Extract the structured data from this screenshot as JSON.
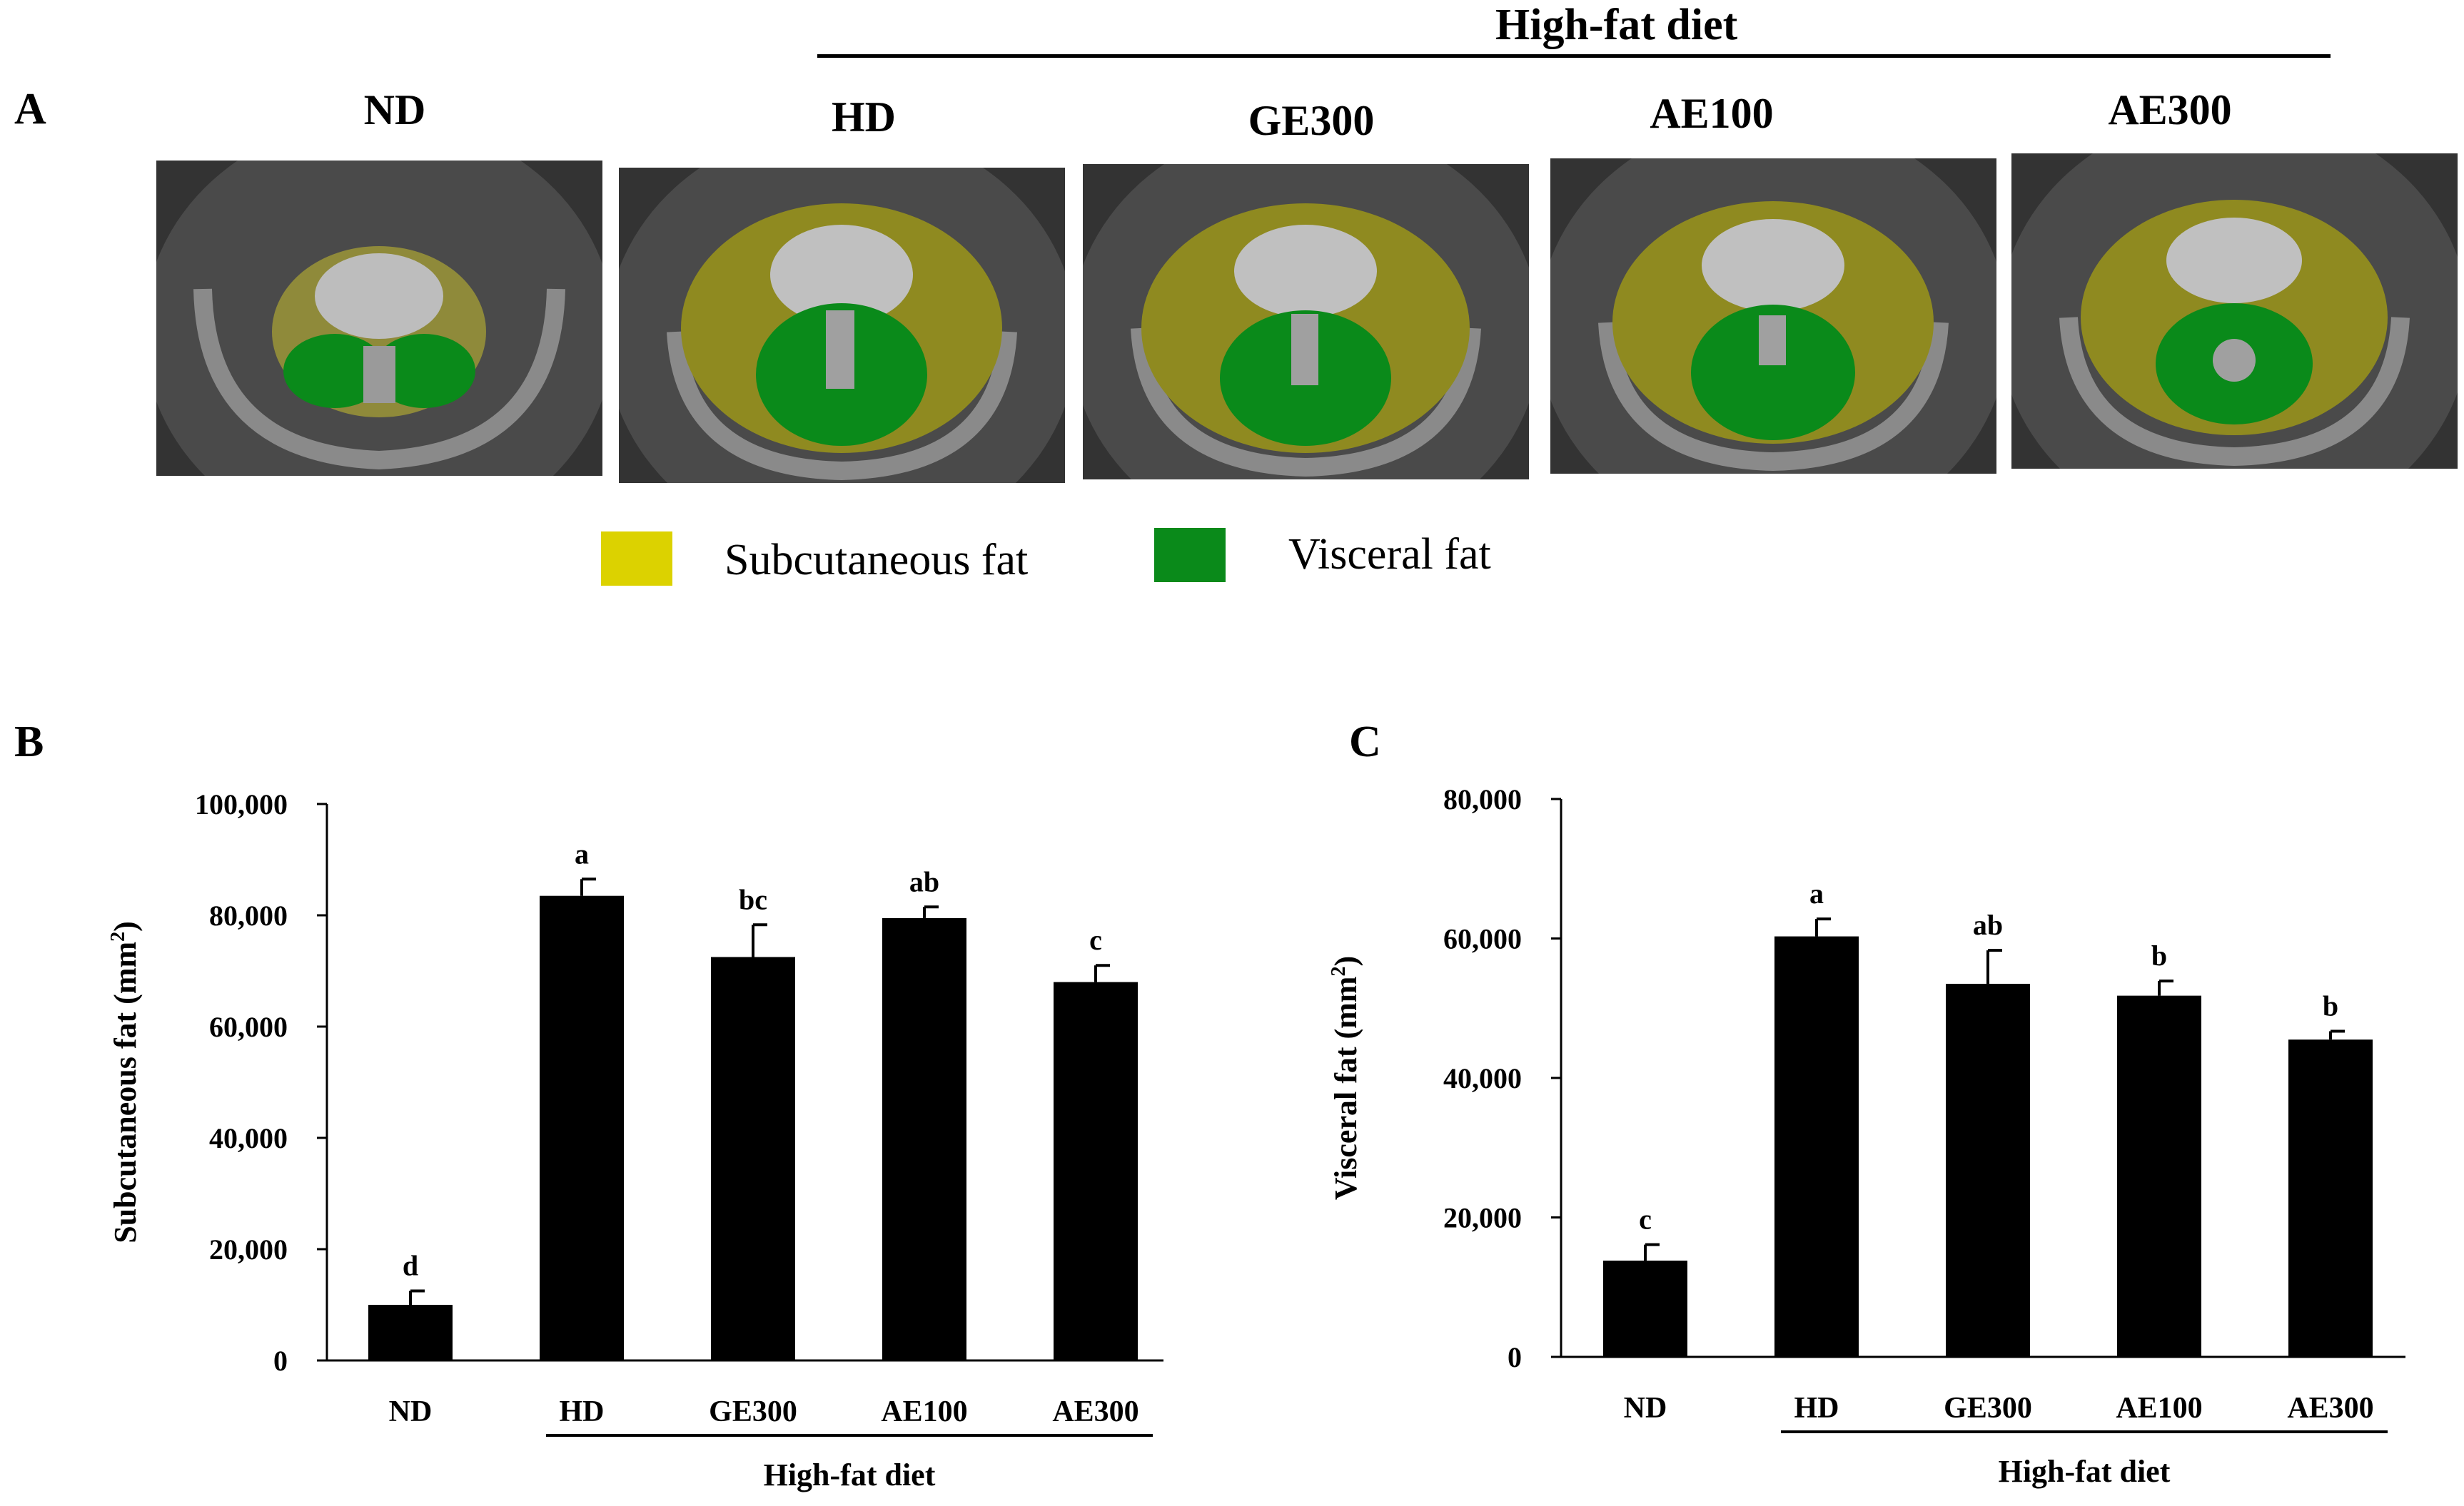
{
  "panel_a": {
    "letter": "A",
    "high_fat_label": "High-fat diet",
    "groups": [
      "ND",
      "HD",
      "GE300",
      "AE100",
      "AE300"
    ],
    "legend": [
      {
        "label": "Subcutaneous fat",
        "color": "#dcd200"
      },
      {
        "label": "Visceral fat",
        "color": "#0a8a1a"
      }
    ]
  },
  "chart_data": [
    {
      "panel": "B",
      "type": "bar",
      "title": "",
      "xlabel": "High-fat diet",
      "ylabel": "Subcutaneous fat (mm",
      "ylabel_sup": "2",
      "ylabel_close": ")",
      "categories": [
        "ND",
        "HD",
        "GE300",
        "AE100",
        "AE300"
      ],
      "values": [
        10000,
        83500,
        72500,
        79500,
        68000
      ],
      "errors": [
        2500,
        3000,
        5800,
        2000,
        3000
      ],
      "letters": [
        "d",
        "a",
        "bc",
        "ab",
        "c"
      ],
      "ylim": [
        0,
        100000
      ],
      "yticks": [
        0,
        20000,
        40000,
        60000,
        80000,
        100000
      ],
      "ytick_labels": [
        "0",
        "20,000",
        "40,000",
        "60,000",
        "80,000",
        "100,000"
      ],
      "bar_color": "#000000"
    },
    {
      "panel": "C",
      "type": "bar",
      "title": "",
      "xlabel": "High-fat diet",
      "ylabel": "Visceral fat (mm",
      "ylabel_sup": "2",
      "ylabel_close": ")",
      "categories": [
        "ND",
        "HD",
        "GE300",
        "AE100",
        "AE300"
      ],
      "values": [
        13800,
        60300,
        53500,
        51800,
        45500
      ],
      "errors": [
        2300,
        2500,
        4800,
        2100,
        1200
      ],
      "letters": [
        "c",
        "a",
        "ab",
        "b",
        "b"
      ],
      "ylim": [
        0,
        80000
      ],
      "yticks": [
        0,
        20000,
        40000,
        60000,
        80000
      ],
      "ytick_labels": [
        "0",
        "20,000",
        "40,000",
        "60,000",
        "80,000"
      ],
      "bar_color": "#000000"
    }
  ]
}
